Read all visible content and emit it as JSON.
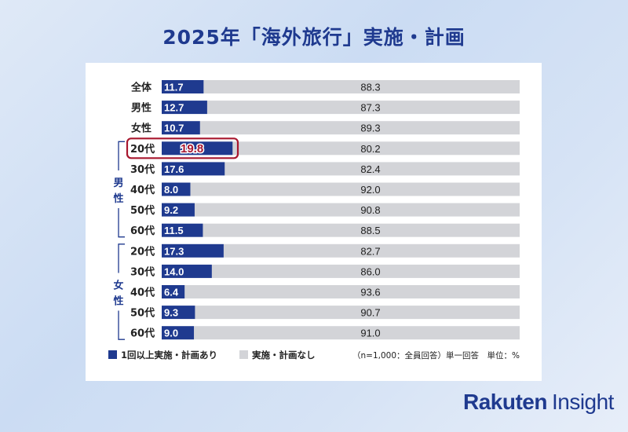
{
  "title": "2025年「海外旅行」実施・計画",
  "brand": {
    "name_bold": "Rakuten",
    "name_light": "Insight"
  },
  "colors": {
    "series1": "#1f3a8f",
    "series2": "#d3d4d8",
    "highlight": "#a8172f",
    "title": "#1f3a8f"
  },
  "group_labels": [
    {
      "label": "男性",
      "first_row": 3,
      "last_row": 7
    },
    {
      "label": "女性",
      "first_row": 8,
      "last_row": 12
    }
  ],
  "highlight_row": 3,
  "legend": {
    "series1": "1回以上実施・計画あり",
    "series2": "実施・計画なし",
    "note": "（n=1,000：全員回答）単一回答　単位：%"
  },
  "chart_data": {
    "type": "bar",
    "orientation": "horizontal",
    "stacked": true,
    "title": "2025年「海外旅行」実施・計画",
    "xlim": [
      0,
      100
    ],
    "unit": "%",
    "categories": [
      "全体",
      "男性",
      "女性",
      "20代",
      "30代",
      "40代",
      "50代",
      "60代",
      "20代",
      "30代",
      "40代",
      "50代",
      "60代"
    ],
    "series": [
      {
        "name": "1回以上実施・計画あり",
        "values": [
          11.7,
          12.7,
          10.7,
          19.8,
          17.6,
          8.0,
          9.2,
          11.5,
          17.3,
          14.0,
          6.4,
          9.3,
          9.0
        ]
      },
      {
        "name": "実施・計画なし",
        "values": [
          88.3,
          87.3,
          89.3,
          80.2,
          82.4,
          92.0,
          90.8,
          88.5,
          82.7,
          86.0,
          93.6,
          90.7,
          91.0
        ]
      }
    ],
    "value_labels": [
      [
        "11.7",
        "12.7",
        "10.7",
        "19.8",
        "17.6",
        "8.0",
        "9.2",
        "11.5",
        "17.3",
        "14.0",
        "6.4",
        "9.3",
        "9.0"
      ],
      [
        "88.3",
        "87.3",
        "89.3",
        "80.2",
        "82.4",
        "92.0",
        "90.8",
        "88.5",
        "82.7",
        "86.0",
        "93.6",
        "90.7",
        "91.0"
      ]
    ],
    "legend_position": "bottom-left",
    "grid": false
  }
}
